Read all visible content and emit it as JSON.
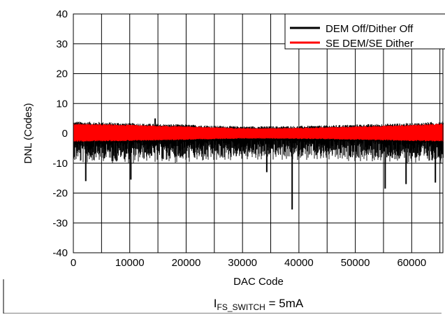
{
  "chart_data": {
    "type": "line",
    "title": "",
    "xlabel": "DAC Code",
    "ylabel": "DNL (Codes)",
    "xlim": [
      0,
      65535
    ],
    "ylim": [
      -40,
      40
    ],
    "x_ticks": [
      0,
      10000,
      20000,
      30000,
      40000,
      50000,
      60000
    ],
    "x_tick_labels": [
      "0",
      "10000",
      "20000",
      "30000",
      "40000",
      "50000",
      "60000"
    ],
    "y_ticks": [
      -40,
      -30,
      -20,
      -10,
      0,
      10,
      20,
      30,
      40
    ],
    "y_tick_labels": [
      "-40",
      "-30",
      "-20",
      "-10",
      "0",
      "10",
      "20",
      "30",
      "40"
    ],
    "grid": true,
    "legend_position": "top-right",
    "series": [
      {
        "name": "DEM Off/Dither Off",
        "color": "#000000",
        "band_x": [
          0,
          5000,
          10000,
          15000,
          20000,
          25000,
          30000,
          35000,
          40000,
          45000,
          50000,
          55000,
          60000,
          65535
        ],
        "band_upper": [
          4.0,
          3.8,
          3.5,
          3.2,
          3.0,
          2.6,
          2.4,
          2.4,
          2.5,
          2.7,
          3.0,
          3.2,
          3.5,
          4.0
        ],
        "band_lower": [
          -10.0,
          -10.0,
          -10.0,
          -10.0,
          -9.8,
          -9.5,
          -9.0,
          -9.0,
          -9.0,
          -9.3,
          -9.5,
          -9.8,
          -10.0,
          -10.0
        ],
        "spikes": [
          {
            "x": 2200,
            "y": -16
          },
          {
            "x": 10200,
            "y": -15.5
          },
          {
            "x": 14500,
            "y": 5
          },
          {
            "x": 34300,
            "y": -13
          },
          {
            "x": 38800,
            "y": -25.5
          },
          {
            "x": 55300,
            "y": -18.5
          },
          {
            "x": 59000,
            "y": -17
          },
          {
            "x": 64200,
            "y": -16.5
          }
        ]
      },
      {
        "name": "SE DEM/SE Dither",
        "color": "#ff0000",
        "band_x": [
          0,
          5000,
          10000,
          15000,
          20000,
          25000,
          30000,
          35000,
          40000,
          45000,
          50000,
          55000,
          60000,
          65535
        ],
        "band_upper": [
          3.3,
          3.1,
          2.9,
          2.6,
          2.4,
          2.1,
          1.8,
          1.8,
          1.9,
          2.1,
          2.4,
          2.6,
          2.9,
          3.3
        ],
        "band_lower": [
          -2.8,
          -2.7,
          -2.6,
          -2.4,
          -2.2,
          -2.0,
          -1.8,
          -1.8,
          -1.9,
          -2.0,
          -2.2,
          -2.4,
          -2.6,
          -2.8
        ]
      }
    ],
    "annotation": {
      "prefix": "I",
      "subscript": "FS_SWITCH",
      "suffix": " = 5mA"
    }
  }
}
